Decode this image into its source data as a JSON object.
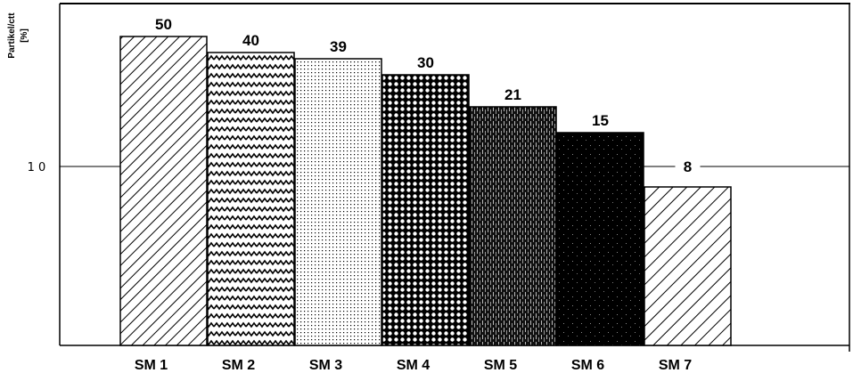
{
  "chart_data": {
    "type": "bar",
    "ylabel": "Partikel/ctt",
    "yunit": "[%]",
    "categories": [
      "SM 1",
      "SM 2",
      "SM 3",
      "SM 4",
      "SM 5",
      "SM 6",
      "SM 7"
    ],
    "values": [
      50,
      40,
      39,
      30,
      21,
      15,
      8
    ],
    "value_labels": [
      "50",
      "40",
      "39",
      "30",
      "21",
      "15",
      "8"
    ],
    "yticks": [
      {
        "value": 10,
        "label": "1 0"
      }
    ],
    "grid": false,
    "legend": "none",
    "border": {
      "top": true,
      "right": true,
      "left": true,
      "bottom": true
    },
    "patterns": [
      "diagonal-hatch",
      "zigzag",
      "dotted",
      "crosshatch",
      "dense-dark-stipple",
      "black-speckled",
      "diagonal-hatch-sparse"
    ]
  }
}
